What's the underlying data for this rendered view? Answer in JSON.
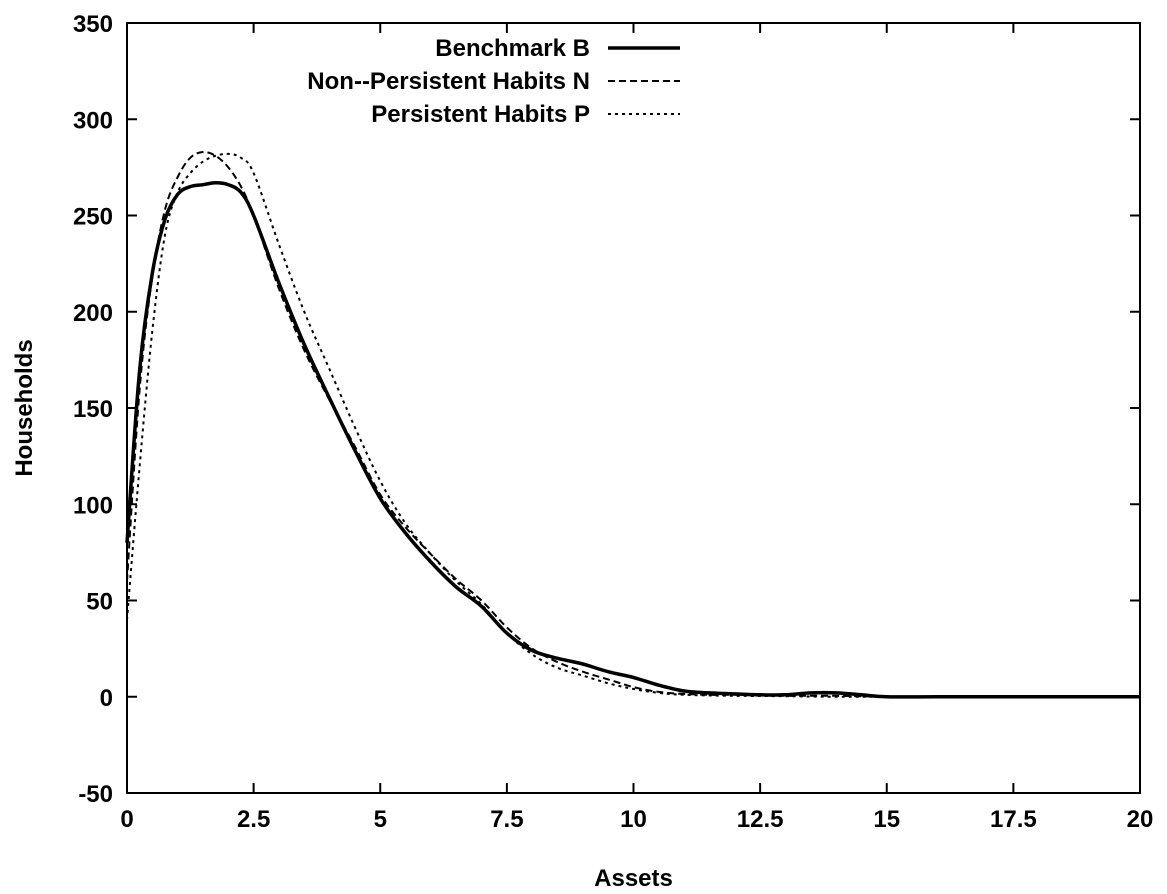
{
  "chart_data": {
    "type": "line",
    "xlabel": "Assets",
    "ylabel": "Households",
    "xlim": [
      0,
      20
    ],
    "ylim": [
      -50,
      350
    ],
    "xticks": [
      {
        "value": 0,
        "label": "0"
      },
      {
        "value": 2.5,
        "label": "2.5"
      },
      {
        "value": 5,
        "label": "5"
      },
      {
        "value": 7.5,
        "label": "7.5"
      },
      {
        "value": 10,
        "label": "10"
      },
      {
        "value": 12.5,
        "label": "12.5"
      },
      {
        "value": 15,
        "label": "15"
      },
      {
        "value": 17.5,
        "label": "17.5"
      },
      {
        "value": 20,
        "label": "20"
      }
    ],
    "yticks": [
      {
        "value": -50,
        "label": "-50"
      },
      {
        "value": 0,
        "label": "0"
      },
      {
        "value": 50,
        "label": "50"
      },
      {
        "value": 100,
        "label": "100"
      },
      {
        "value": 150,
        "label": "150"
      },
      {
        "value": 200,
        "label": "200"
      },
      {
        "value": 250,
        "label": "250"
      },
      {
        "value": 300,
        "label": "300"
      },
      {
        "value": 350,
        "label": "350"
      }
    ],
    "grid": false,
    "legend_position": "top-center",
    "series": [
      {
        "name": "Benchmark B",
        "style": "solid",
        "points": [
          [
            0,
            80
          ],
          [
            0.25,
            170
          ],
          [
            0.5,
            220
          ],
          [
            0.75,
            248
          ],
          [
            1,
            261
          ],
          [
            1.25,
            265
          ],
          [
            1.5,
            266
          ],
          [
            1.75,
            267
          ],
          [
            2,
            266
          ],
          [
            2.25,
            262
          ],
          [
            2.5,
            250
          ],
          [
            3,
            215
          ],
          [
            3.5,
            183
          ],
          [
            4,
            155
          ],
          [
            4.5,
            128
          ],
          [
            5,
            103
          ],
          [
            5.5,
            85
          ],
          [
            6,
            70
          ],
          [
            6.5,
            57
          ],
          [
            7,
            47
          ],
          [
            7.5,
            33
          ],
          [
            8,
            24
          ],
          [
            8.5,
            20
          ],
          [
            9,
            17
          ],
          [
            9.5,
            13
          ],
          [
            10,
            10
          ],
          [
            10.5,
            6
          ],
          [
            11,
            3
          ],
          [
            11.5,
            2
          ],
          [
            12,
            1.5
          ],
          [
            12.5,
            1
          ],
          [
            13,
            1
          ],
          [
            13.5,
            2
          ],
          [
            14,
            2
          ],
          [
            14.5,
            1
          ],
          [
            15,
            0
          ],
          [
            16,
            0
          ],
          [
            17,
            0
          ],
          [
            18,
            0
          ],
          [
            19,
            0
          ],
          [
            20,
            0
          ]
        ]
      },
      {
        "name": "Non--Persistent Habits N",
        "style": "dashed",
        "points": [
          [
            0,
            60
          ],
          [
            0.25,
            160
          ],
          [
            0.5,
            218
          ],
          [
            0.75,
            253
          ],
          [
            1,
            270
          ],
          [
            1.25,
            280
          ],
          [
            1.5,
            283
          ],
          [
            1.75,
            281
          ],
          [
            2,
            275
          ],
          [
            2.25,
            265
          ],
          [
            2.5,
            250
          ],
          [
            3,
            212
          ],
          [
            3.5,
            180
          ],
          [
            4,
            154
          ],
          [
            4.5,
            130
          ],
          [
            5,
            105
          ],
          [
            5.5,
            88
          ],
          [
            6,
            74
          ],
          [
            6.5,
            61
          ],
          [
            7,
            50
          ],
          [
            7.5,
            36
          ],
          [
            8,
            25
          ],
          [
            8.5,
            18
          ],
          [
            9,
            13
          ],
          [
            9.5,
            9
          ],
          [
            10,
            5
          ],
          [
            10.5,
            2.5
          ],
          [
            11,
            1.5
          ],
          [
            11.5,
            1
          ],
          [
            12,
            1
          ],
          [
            13,
            0.5
          ],
          [
            14,
            0.5
          ],
          [
            15,
            0
          ],
          [
            16,
            0
          ],
          [
            17,
            0
          ],
          [
            18,
            0
          ],
          [
            19,
            0
          ],
          [
            20,
            0
          ]
        ]
      },
      {
        "name": "Persistent Habits P",
        "style": "dotted",
        "points": [
          [
            0,
            40
          ],
          [
            0.25,
            120
          ],
          [
            0.5,
            190
          ],
          [
            0.75,
            240
          ],
          [
            1,
            262
          ],
          [
            1.25,
            272
          ],
          [
            1.5,
            278
          ],
          [
            1.75,
            281
          ],
          [
            2,
            282
          ],
          [
            2.25,
            280
          ],
          [
            2.5,
            272
          ],
          [
            3,
            235
          ],
          [
            3.5,
            200
          ],
          [
            4,
            170
          ],
          [
            4.5,
            140
          ],
          [
            5,
            112
          ],
          [
            5.5,
            90
          ],
          [
            6,
            74
          ],
          [
            6.5,
            60
          ],
          [
            7,
            48
          ],
          [
            7.5,
            33
          ],
          [
            8,
            22
          ],
          [
            8.5,
            15
          ],
          [
            9,
            11
          ],
          [
            9.5,
            7
          ],
          [
            10,
            4
          ],
          [
            10.5,
            2
          ],
          [
            11,
            1
          ],
          [
            12,
            0.5
          ],
          [
            13,
            0.3
          ],
          [
            14,
            0
          ],
          [
            15,
            0
          ],
          [
            16,
            0
          ],
          [
            17,
            0
          ],
          [
            18,
            0
          ],
          [
            19,
            0
          ],
          [
            20,
            0
          ]
        ]
      }
    ]
  }
}
